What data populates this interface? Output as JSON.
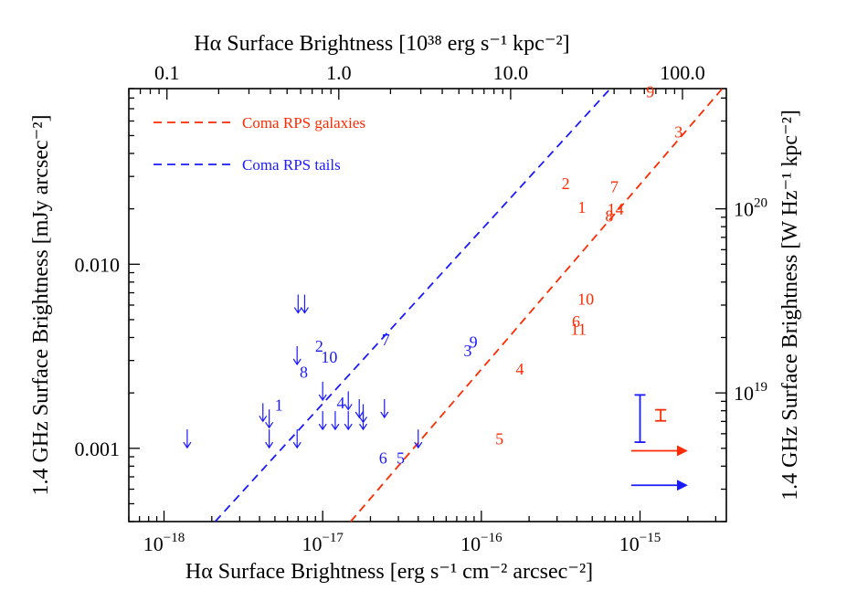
{
  "chart_data": {
    "type": "scatter",
    "x_scale": "log",
    "y_scale": "log",
    "xlim": [
      6e-19,
      3.5e-15
    ],
    "ylim": [
      0.0004,
      0.09
    ],
    "top_xlim": [
      0.06,
      180
    ],
    "right_ylim": [
      2e+18,
      4.5e+20
    ],
    "xlabel_bottom": "Hα Surface Brightness [erg s⁻¹ cm⁻² arcsec⁻²]",
    "xlabel_top": "Hα Surface Brightness [10³⁸ erg s⁻¹ kpc⁻²]",
    "ylabel_left": "1.4 GHz Surface Brightness [mJy arcsec⁻²]",
    "ylabel_right": "1.4 GHz Surface Brightness [W Hz⁻¹ kpc⁻²]",
    "bottom_ticks": [
      {
        "value": 1e-18,
        "base": "10",
        "exp": "−18"
      },
      {
        "value": 1e-17,
        "base": "10",
        "exp": "−17"
      },
      {
        "value": 1e-16,
        "base": "10",
        "exp": "−16"
      },
      {
        "value": 1e-15,
        "base": "10",
        "exp": "−15"
      }
    ],
    "top_ticks": [
      {
        "value": 0.1,
        "label": "0.1"
      },
      {
        "value": 1.0,
        "label": "1.0"
      },
      {
        "value": 10.0,
        "label": "10.0"
      },
      {
        "value": 100.0,
        "label": "100.0"
      }
    ],
    "left_ticks": [
      {
        "value": 0.001,
        "label": "0.001"
      },
      {
        "value": 0.01,
        "label": "0.010"
      }
    ],
    "right_ticks": [
      {
        "value": 1e+19,
        "base": "10",
        "exp": "19"
      },
      {
        "value": 1e+20,
        "base": "10",
        "exp": "20"
      }
    ],
    "legend": {
      "placement": "top-left",
      "entries": [
        {
          "label": "Coma RPS galaxies",
          "color": "#ff2a00",
          "style": "dashed"
        },
        {
          "label": "Coma RPS tails",
          "color": "#1a1aff",
          "style": "dashed"
        }
      ]
    },
    "fit_lines": [
      {
        "color": "#ff2a00",
        "points": [
          [
            1.5e-17,
            0.0004
          ],
          [
            3.3e-15,
            0.09
          ]
        ]
      },
      {
        "color": "#1a1aff",
        "points": [
          [
            2.1e-18,
            0.0004
          ],
          [
            6.5e-16,
            0.09
          ]
        ]
      }
    ],
    "series": [
      {
        "name": "Coma RPS galaxies",
        "color": "#ff2a00",
        "points": [
          {
            "label": "1",
            "x": 4.3e-16,
            "y": 0.0205
          },
          {
            "label": "2",
            "x": 3.4e-16,
            "y": 0.0275
          },
          {
            "label": "3",
            "x": 1.75e-15,
            "y": 0.0525
          },
          {
            "label": "4",
            "x": 1.75e-16,
            "y": 0.0027
          },
          {
            "label": "5",
            "x": 1.3e-16,
            "y": 0.00113
          },
          {
            "label": "6",
            "x": 3.95e-16,
            "y": 0.0049
          },
          {
            "label": "7",
            "x": 6.9e-16,
            "y": 0.0265
          },
          {
            "label": "8",
            "x": 6.4e-16,
            "y": 0.0183
          },
          {
            "label": "9",
            "x": 1.16e-15,
            "y": 0.087
          },
          {
            "label": "10",
            "x": 4.55e-16,
            "y": 0.0064
          },
          {
            "label": "11",
            "x": 4.1e-16,
            "y": 0.0044
          },
          {
            "label": "14",
            "x": 7e-16,
            "y": 0.0198
          }
        ]
      },
      {
        "name": "Coma RPS tails",
        "color": "#1a1aff",
        "points": [
          {
            "label": "1",
            "x": 5.3e-18,
            "y": 0.00172
          },
          {
            "label": "2",
            "x": 9.5e-18,
            "y": 0.0036
          },
          {
            "label": "3",
            "x": 8.2e-17,
            "y": 0.0034
          },
          {
            "label": "4",
            "x": 1.3e-17,
            "y": 0.00177
          },
          {
            "label": "5",
            "x": 3.1e-17,
            "y": 0.00089
          },
          {
            "label": "6",
            "x": 2.4e-17,
            "y": 0.00089
          },
          {
            "label": "7",
            "x": 2.5e-17,
            "y": 0.0039
          },
          {
            "label": "8",
            "x": 7.6e-18,
            "y": 0.0026
          },
          {
            "label": "9",
            "x": 8.9e-17,
            "y": 0.0038
          },
          {
            "label": "10",
            "x": 1.1e-17,
            "y": 0.0031
          }
        ]
      }
    ],
    "upper_limits": [
      {
        "color": "#1a1aff",
        "points": [
          {
            "x": 1.4e-18,
            "y": 0.00113
          },
          {
            "x": 4.2e-18,
            "y": 0.00157
          },
          {
            "x": 4.6e-18,
            "y": 0.00145
          },
          {
            "x": 4.6e-18,
            "y": 0.00113
          },
          {
            "x": 7e-18,
            "y": 0.0061
          },
          {
            "x": 7.7e-18,
            "y": 0.0061
          },
          {
            "x": 6.9e-18,
            "y": 0.0032
          },
          {
            "x": 6.9e-18,
            "y": 0.00113
          },
          {
            "x": 1e-17,
            "y": 0.00205
          },
          {
            "x": 1e-17,
            "y": 0.00142
          },
          {
            "x": 1.2e-17,
            "y": 0.00142
          },
          {
            "x": 1.45e-17,
            "y": 0.00182
          },
          {
            "x": 1.45e-17,
            "y": 0.00142
          },
          {
            "x": 1.7e-17,
            "y": 0.00165
          },
          {
            "x": 1.8e-17,
            "y": 0.00155
          },
          {
            "x": 1.8e-17,
            "y": 0.00142
          },
          {
            "x": 2.45e-17,
            "y": 0.00165
          },
          {
            "x": 4e-17,
            "y": 0.00113
          }
        ]
      }
    ],
    "error_bars": [
      {
        "color": "#1a1aff",
        "x": 1e-15,
        "y_low": 0.00108,
        "y_high": 0.00195
      },
      {
        "color": "#ff2a00",
        "x": 1.35e-15,
        "y_low": 0.00141,
        "y_high": 0.00162
      }
    ],
    "lower_limit_arrows": [
      {
        "color": "#ff2a00",
        "x_start": 8.8e-16,
        "x_end": 1.95e-15,
        "y": 0.00097
      },
      {
        "color": "#1a1aff",
        "x_start": 8.8e-16,
        "x_end": 1.95e-15,
        "y": 0.00063
      }
    ],
    "grid": false
  }
}
